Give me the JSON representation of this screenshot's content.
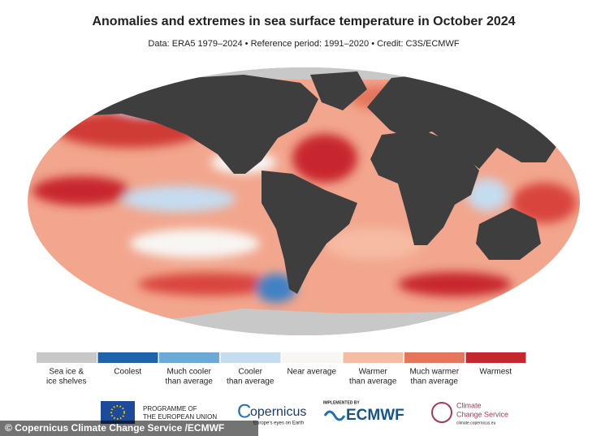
{
  "header": {
    "title": "Anomalies and extremes in sea surface temperature in October 2024",
    "subtitle": "Data: ERA5 1979–2024  •  Reference period: 1991–2020  •  Credit: C3S/ECMWF"
  },
  "legend": {
    "items": [
      {
        "lines": [
          "Sea ice &",
          "ice shelves"
        ],
        "color": "#c8c8c8"
      },
      {
        "lines": [
          "Coolest"
        ],
        "color": "#1f63ad"
      },
      {
        "lines": [
          "Much cooler",
          "than average"
        ],
        "color": "#6aa9d8"
      },
      {
        "lines": [
          "Cooler",
          "than average"
        ],
        "color": "#c5dcef"
      },
      {
        "lines": [
          "Near average"
        ],
        "color": "#f8f6f3"
      },
      {
        "lines": [
          "Warmer",
          "than average"
        ],
        "color": "#f6bba3"
      },
      {
        "lines": [
          "Much warmer",
          "than average"
        ],
        "color": "#e3765b"
      },
      {
        "lines": [
          "Warmest"
        ],
        "color": "#c8262e"
      }
    ]
  },
  "logos": {
    "eu": [
      "PROGRAMME OF",
      "THE EUROPEAN UNION"
    ],
    "copernicus": "opernicus",
    "copernicus_tagline": "Europe's eyes on Earth",
    "implemented": "IMPLEMENTED BY",
    "ecmwf": "ECMWF",
    "c3s": [
      "Climate",
      "Change Service"
    ],
    "c3s_url": "climate.copernicus.eu"
  },
  "credit": "© Copernicus Climate Change Service /ECMWF"
}
